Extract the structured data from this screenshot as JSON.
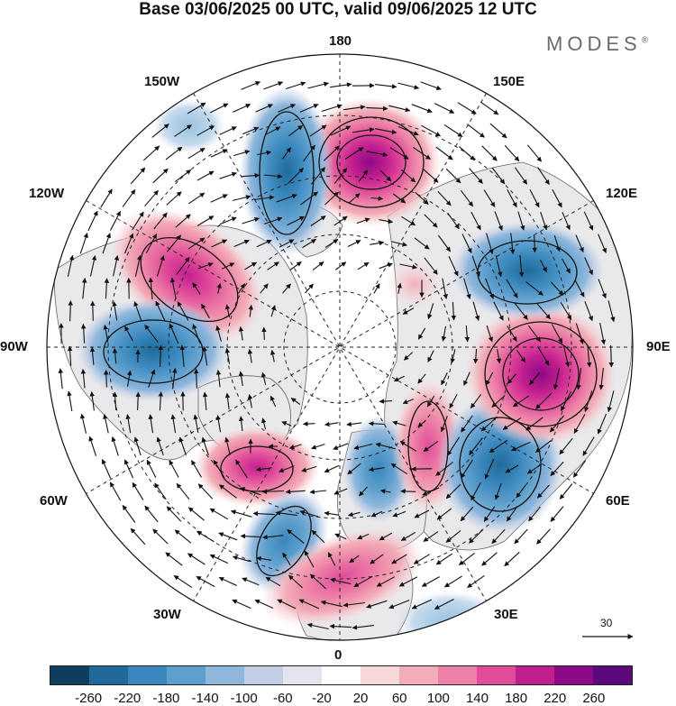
{
  "title": "Base 03/06/2025 00 UTC, valid 09/06/2025 12 UTC",
  "brand": "MODES",
  "brand_mark": "®",
  "longitude_labels": {
    "lon_180": "180",
    "lon_150e": "150E",
    "lon_120e": "120E",
    "lon_90e": "90E",
    "lon_60e": "60E",
    "lon_30e": "30E",
    "lon_0": "0",
    "lon_30w": "30W",
    "lon_60w": "60W",
    "lon_90w": "90W",
    "lon_120w": "120W",
    "lon_150w": "150W"
  },
  "reference_vector": "30",
  "colorbar": {
    "colors": [
      "#0f3d5e",
      "#1f6a9a",
      "#3a87bd",
      "#5d9fcd",
      "#8fb7dc",
      "#c2cde6",
      "#e4e4f0",
      "#ffffff",
      "#f8d8da",
      "#f3adb8",
      "#ec80a6",
      "#e04b9a",
      "#c21f8e",
      "#8c0a86",
      "#5a0a7c"
    ],
    "tick_labels": [
      "-260",
      "-220",
      "-180",
      "-140",
      "-100",
      "-60",
      "-20",
      "20",
      "60",
      "100",
      "140",
      "180",
      "220",
      "260"
    ]
  },
  "anomaly_centers": [
    {
      "lon": 160,
      "lat": 55,
      "sign": "positive",
      "level": 5
    },
    {
      "lon": -155,
      "lat": 50,
      "sign": "negative",
      "level": 4
    },
    {
      "lon": -120,
      "lat": 52,
      "sign": "positive",
      "level": 4
    },
    {
      "lon": -90,
      "lat": 45,
      "sign": "negative",
      "level": 4
    },
    {
      "lon": -50,
      "lat": 45,
      "sign": "positive",
      "level": 4
    },
    {
      "lon": -25,
      "lat": 40,
      "sign": "negative",
      "level": 3
    },
    {
      "lon": -5,
      "lat": 33,
      "sign": "positive",
      "level": 3
    },
    {
      "lon": 20,
      "lat": 62,
      "sign": "negative",
      "level": 3
    },
    {
      "lon": 35,
      "lat": 63,
      "sign": "positive",
      "level": 3
    },
    {
      "lon": 55,
      "lat": 48,
      "sign": "negative",
      "level": 4
    },
    {
      "lon": 93,
      "lat": 48,
      "sign": "positive",
      "level": 5
    },
    {
      "lon": 118,
      "lat": 45,
      "sign": "negative",
      "level": 4
    },
    {
      "lon": 140,
      "lat": 74,
      "sign": "positive",
      "level": 1
    }
  ]
}
